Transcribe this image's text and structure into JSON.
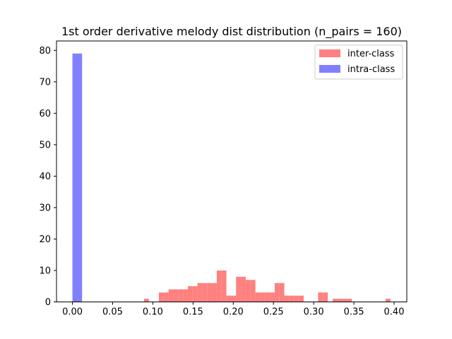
{
  "chart_data": {
    "type": "histogram",
    "title": "1st order derivative melody dist distribution (n_pairs = 160)",
    "xlabel": "",
    "ylabel": "",
    "xlim": [
      -0.0198,
      0.4158
    ],
    "ylim": [
      0,
      83
    ],
    "x_ticks": [
      "0.00",
      "0.05",
      "0.10",
      "0.15",
      "0.20",
      "0.25",
      "0.30",
      "0.35",
      "0.40"
    ],
    "y_ticks": [
      "0",
      "10",
      "20",
      "30",
      "40",
      "50",
      "60",
      "70",
      "80"
    ],
    "grid": false,
    "legend_position": "top-right",
    "series": [
      {
        "name": "inter-class",
        "color": "#ff8080",
        "bin_width": 0.006,
        "bars": [
          {
            "x": 0.0921,
            "y": 1
          },
          {
            "x": 0.1105,
            "y": 3
          },
          {
            "x": 0.1165,
            "y": 3
          },
          {
            "x": 0.1225,
            "y": 4
          },
          {
            "x": 0.1285,
            "y": 4
          },
          {
            "x": 0.1345,
            "y": 4
          },
          {
            "x": 0.1405,
            "y": 4
          },
          {
            "x": 0.1465,
            "y": 5
          },
          {
            "x": 0.1525,
            "y": 5
          },
          {
            "x": 0.1585,
            "y": 6
          },
          {
            "x": 0.1645,
            "y": 6
          },
          {
            "x": 0.1705,
            "y": 6
          },
          {
            "x": 0.1765,
            "y": 6
          },
          {
            "x": 0.1825,
            "y": 10
          },
          {
            "x": 0.1885,
            "y": 10
          },
          {
            "x": 0.1945,
            "y": 2
          },
          {
            "x": 0.2005,
            "y": 2
          },
          {
            "x": 0.2065,
            "y": 8
          },
          {
            "x": 0.2125,
            "y": 8
          },
          {
            "x": 0.2185,
            "y": 7
          },
          {
            "x": 0.2245,
            "y": 7
          },
          {
            "x": 0.2305,
            "y": 3
          },
          {
            "x": 0.2365,
            "y": 3
          },
          {
            "x": 0.2425,
            "y": 3
          },
          {
            "x": 0.2485,
            "y": 3
          },
          {
            "x": 0.2545,
            "y": 6
          },
          {
            "x": 0.2605,
            "y": 6
          },
          {
            "x": 0.2665,
            "y": 2
          },
          {
            "x": 0.2725,
            "y": 2
          },
          {
            "x": 0.2785,
            "y": 2
          },
          {
            "x": 0.2845,
            "y": 2
          },
          {
            "x": 0.3085,
            "y": 3
          },
          {
            "x": 0.3145,
            "y": 3
          },
          {
            "x": 0.3265,
            "y": 1
          },
          {
            "x": 0.3325,
            "y": 1
          },
          {
            "x": 0.3385,
            "y": 1
          },
          {
            "x": 0.3445,
            "y": 1
          },
          {
            "x": 0.3925,
            "y": 1
          }
        ]
      },
      {
        "name": "intra-class",
        "color": "#8080ff",
        "bin_width": 0.012,
        "bars": [
          {
            "x": 0.006,
            "y": 79
          }
        ]
      }
    ]
  }
}
